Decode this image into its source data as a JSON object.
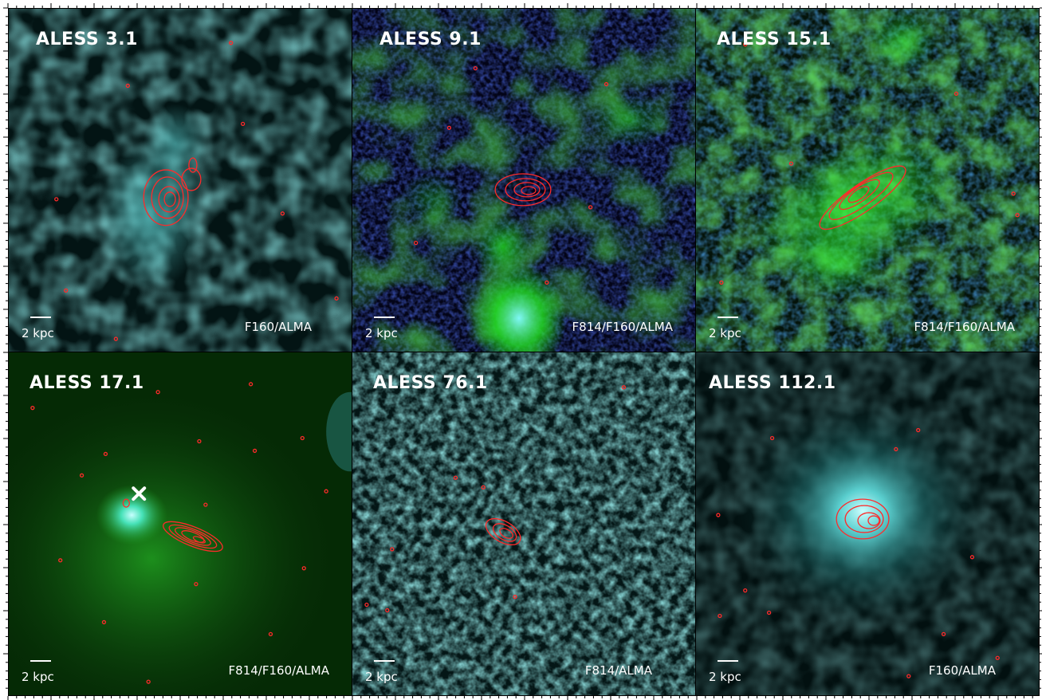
{
  "figure": {
    "panels": [
      {
        "title": "ALESS 3.1",
        "bands": "F160/ALMA",
        "scale": "2 kpc",
        "palette": "cyan",
        "marker": false
      },
      {
        "title": "ALESS 9.1",
        "bands": "F814/F160/ALMA",
        "scale": "2 kpc",
        "palette": "green",
        "marker": false
      },
      {
        "title": "ALESS 15.1",
        "bands": "F814/F160/ALMA",
        "scale": "2 kpc",
        "palette": "green",
        "marker": false
      },
      {
        "title": "ALESS 17.1",
        "bands": "F814/F160/ALMA",
        "scale": "2 kpc",
        "palette": "green",
        "marker": true
      },
      {
        "title": "ALESS 76.1",
        "bands": "F814/ALMA",
        "scale": "2 kpc",
        "palette": "cyan",
        "marker": false
      },
      {
        "title": "ALESS 112.1",
        "bands": "F160/ALMA",
        "scale": "2 kpc",
        "palette": "cyan",
        "marker": false
      }
    ],
    "colors": {
      "contour": "#ff2a2a",
      "cyan_emission": "#39c9c9",
      "green_emission": "#22e022",
      "blue_noise": "#1a2aa8",
      "text": "#ffffff",
      "marker": "#ffffff"
    }
  }
}
